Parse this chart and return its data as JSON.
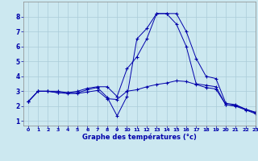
{
  "xlabel": "Graphe des températures (°c)",
  "xlim": [
    -0.5,
    23
  ],
  "ylim": [
    0.7,
    9.0
  ],
  "yticks": [
    1,
    2,
    3,
    4,
    5,
    6,
    7,
    8
  ],
  "xticks": [
    0,
    1,
    2,
    3,
    4,
    5,
    6,
    7,
    8,
    9,
    10,
    11,
    12,
    13,
    14,
    15,
    16,
    17,
    18,
    19,
    20,
    21,
    22,
    23
  ],
  "bg_color": "#cce8f0",
  "grid_color": "#aaccd8",
  "line_color": "#0000aa",
  "line1_x": [
    0,
    1,
    2,
    3,
    4,
    5,
    6,
    7,
    8,
    9,
    10,
    11,
    12,
    13,
    14,
    15,
    16,
    17,
    18,
    19,
    20,
    21,
    22,
    23
  ],
  "line1_y": [
    2.3,
    3.0,
    3.0,
    3.0,
    2.9,
    3.0,
    3.2,
    3.3,
    3.3,
    2.65,
    4.5,
    5.3,
    6.5,
    8.2,
    8.2,
    8.2,
    7.0,
    5.2,
    4.0,
    3.85,
    2.2,
    2.1,
    1.8,
    1.6
  ],
  "line2_x": [
    0,
    1,
    2,
    3,
    4,
    5,
    6,
    7,
    8,
    9,
    10,
    11,
    12,
    13,
    14,
    15,
    16,
    17,
    18,
    19,
    20,
    21,
    22,
    23
  ],
  "line2_y": [
    2.3,
    3.0,
    3.0,
    2.9,
    2.9,
    2.9,
    3.1,
    3.25,
    2.6,
    1.35,
    2.65,
    6.5,
    7.2,
    8.2,
    8.2,
    7.5,
    6.0,
    3.5,
    3.4,
    3.3,
    2.1,
    2.05,
    1.8,
    1.55
  ],
  "line3_x": [
    0,
    1,
    2,
    3,
    4,
    5,
    6,
    7,
    8,
    9,
    10,
    11,
    12,
    13,
    14,
    15,
    16,
    17,
    18,
    19,
    20,
    21,
    22,
    23
  ],
  "line3_y": [
    2.3,
    3.0,
    3.0,
    2.9,
    2.85,
    2.85,
    2.95,
    3.05,
    2.5,
    2.45,
    3.0,
    3.1,
    3.3,
    3.45,
    3.55,
    3.7,
    3.65,
    3.45,
    3.25,
    3.15,
    2.1,
    2.0,
    1.75,
    1.5
  ]
}
